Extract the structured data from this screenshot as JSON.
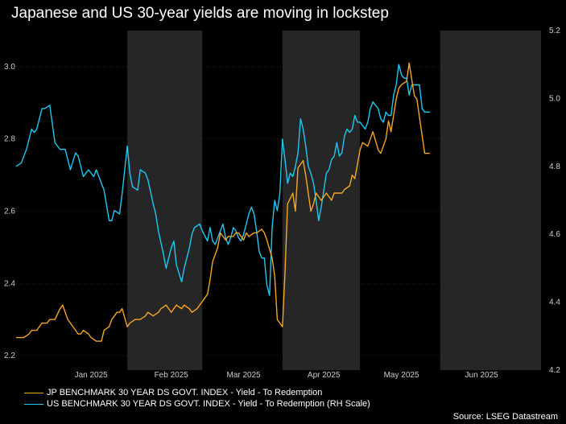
{
  "title": "Japanese and US 30-year yields are moving in lockstep",
  "source": "Source: LSEG Datastream",
  "colors": {
    "jp": "#f5a623",
    "us": "#1ec8f0",
    "band": "#262626",
    "background": "#000000",
    "grid": "#3a3a3a",
    "axis_text": "#cccccc"
  },
  "chart_data": {
    "type": "line",
    "x_unit": "days since 2024-12-19",
    "x_range": [
      0,
      203
    ],
    "month_labels": [
      {
        "label": "Jan 2025",
        "x": 29
      },
      {
        "label": "Feb 2025",
        "x": 60
      },
      {
        "label": "Mar 2025",
        "x": 88
      },
      {
        "label": "Apr 2025",
        "x": 119
      },
      {
        "label": "May 2025",
        "x": 149
      },
      {
        "label": "Jun 2025",
        "x": 180
      }
    ],
    "shaded_bands": [
      [
        43,
        72
      ],
      [
        103,
        133
      ],
      [
        164,
        203
      ]
    ],
    "y_left": {
      "min": 2.16,
      "max": 3.1,
      "ticks": [
        2.2,
        2.4,
        2.6,
        2.8,
        3.0
      ]
    },
    "y_right": {
      "min": 4.2,
      "max": 5.2,
      "ticks": [
        4.2,
        4.4,
        4.6,
        4.8,
        5.0,
        5.2
      ]
    },
    "series": [
      {
        "name": "JP BENCHMARK 30 YEAR DS GOVT. INDEX - Yield - To Redemption",
        "axis": "left",
        "x": [
          0,
          3,
          5,
          6,
          8,
          9,
          10,
          12,
          13,
          15,
          17,
          18,
          19,
          20,
          22,
          23,
          24,
          25,
          26,
          28,
          29,
          31,
          33,
          34,
          36,
          37,
          39,
          40,
          41,
          43,
          44,
          46,
          47,
          48,
          50,
          51,
          53,
          55,
          56,
          58,
          60,
          61,
          62,
          64,
          65,
          67,
          68,
          70,
          71,
          72,
          74,
          75,
          76,
          78,
          79,
          81,
          82,
          84,
          85,
          86,
          88,
          89,
          90,
          92,
          93,
          95,
          96,
          97,
          99,
          100,
          101,
          103,
          104,
          105,
          107,
          108,
          109,
          111,
          112,
          114,
          115,
          116,
          118,
          119,
          120,
          122,
          123,
          125,
          126,
          127,
          129,
          130,
          131,
          133,
          134,
          136,
          137,
          138,
          140,
          141,
          143,
          144,
          145,
          147,
          148,
          149,
          151,
          152,
          154,
          155,
          156,
          158,
          159,
          160
        ],
        "values": [
          2.25,
          2.25,
          2.26,
          2.27,
          2.27,
          2.28,
          2.29,
          2.29,
          2.3,
          2.3,
          2.33,
          2.34,
          2.32,
          2.3,
          2.28,
          2.27,
          2.26,
          2.26,
          2.27,
          2.26,
          2.25,
          2.24,
          2.24,
          2.27,
          2.28,
          2.3,
          2.32,
          2.32,
          2.33,
          2.28,
          2.29,
          2.3,
          2.3,
          2.3,
          2.31,
          2.32,
          2.31,
          2.32,
          2.33,
          2.34,
          2.32,
          2.33,
          2.34,
          2.33,
          2.34,
          2.33,
          2.32,
          2.33,
          2.34,
          2.35,
          2.37,
          2.41,
          2.46,
          2.5,
          2.54,
          2.52,
          2.53,
          2.53,
          2.54,
          2.54,
          2.52,
          2.54,
          2.53,
          2.54,
          2.54,
          2.55,
          2.54,
          2.52,
          2.47,
          2.42,
          2.3,
          2.28,
          2.43,
          2.62,
          2.65,
          2.6,
          2.72,
          2.74,
          2.7,
          2.6,
          2.62,
          2.65,
          2.63,
          2.64,
          2.65,
          2.63,
          2.65,
          2.65,
          2.65,
          2.66,
          2.67,
          2.7,
          2.69,
          2.77,
          2.79,
          2.78,
          2.8,
          2.82,
          2.77,
          2.76,
          2.8,
          2.85,
          2.82,
          2.91,
          2.94,
          2.95,
          2.96,
          3.01,
          2.92,
          2.91,
          2.86,
          2.76,
          2.76,
          2.76
        ]
      },
      {
        "name": "US BENCHMARK 30 YEAR DS GOVT. INDEX - Yield - To Redemption (RH Scale)",
        "axis": "right",
        "x": [
          0,
          2,
          4,
          6,
          7,
          8,
          10,
          11,
          13,
          15,
          16,
          17,
          19,
          21,
          23,
          24,
          26,
          27,
          28,
          30,
          31,
          33,
          34,
          36,
          37,
          38,
          40,
          41,
          43,
          44,
          45,
          47,
          48,
          50,
          51,
          53,
          54,
          55,
          57,
          58,
          60,
          61,
          62,
          64,
          65,
          67,
          68,
          69,
          71,
          72,
          74,
          75,
          76,
          77,
          78,
          79,
          80,
          81,
          82,
          83,
          84,
          85,
          86,
          87,
          88,
          89,
          90,
          91,
          92,
          93,
          94,
          95,
          96,
          97,
          98,
          99,
          100,
          101,
          102,
          103,
          104,
          105,
          106,
          107,
          108,
          109,
          110,
          111,
          112,
          113,
          114,
          115,
          116,
          117,
          118,
          119,
          120,
          121,
          122,
          123,
          124,
          125,
          126,
          127,
          128,
          129,
          130,
          131,
          132,
          133,
          134,
          135,
          136,
          137,
          138,
          139,
          140,
          141,
          142,
          143,
          144,
          145,
          146,
          147,
          148,
          149,
          150,
          151,
          152,
          153,
          154,
          155,
          156,
          157,
          158,
          159,
          160
        ],
        "values": [
          4.8,
          4.81,
          4.85,
          4.91,
          4.9,
          4.91,
          4.97,
          4.97,
          4.98,
          4.87,
          4.86,
          4.85,
          4.85,
          4.79,
          4.84,
          4.83,
          4.77,
          4.78,
          4.79,
          4.77,
          4.79,
          4.75,
          4.73,
          4.64,
          4.64,
          4.67,
          4.66,
          4.72,
          4.86,
          4.78,
          4.74,
          4.73,
          4.79,
          4.78,
          4.76,
          4.69,
          4.66,
          4.61,
          4.54,
          4.5,
          4.56,
          4.58,
          4.51,
          4.46,
          4.5,
          4.56,
          4.6,
          4.62,
          4.63,
          4.61,
          4.58,
          4.62,
          4.58,
          4.57,
          4.59,
          4.61,
          4.63,
          4.59,
          4.57,
          4.59,
          4.62,
          4.61,
          4.59,
          4.58,
          4.6,
          4.63,
          4.66,
          4.68,
          4.66,
          4.61,
          4.55,
          4.53,
          4.53,
          4.45,
          4.42,
          4.62,
          4.7,
          4.67,
          4.72,
          4.88,
          4.82,
          4.75,
          4.78,
          4.77,
          4.8,
          4.84,
          4.94,
          4.91,
          4.86,
          4.8,
          4.78,
          4.75,
          4.7,
          4.64,
          4.68,
          4.73,
          4.78,
          4.79,
          4.82,
          4.83,
          4.87,
          4.83,
          4.84,
          4.89,
          4.91,
          4.9,
          4.91,
          4.95,
          4.93,
          4.93,
          4.92,
          4.91,
          4.93,
          4.97,
          4.99,
          4.98,
          4.97,
          4.94,
          4.93,
          4.96,
          4.95,
          4.95,
          5.01,
          5.04,
          5.1,
          5.07,
          5.06,
          5.06,
          5.01,
          5.04,
          5.04,
          5.04,
          5.04,
          4.97,
          4.96,
          4.96,
          4.96
        ]
      }
    ]
  }
}
